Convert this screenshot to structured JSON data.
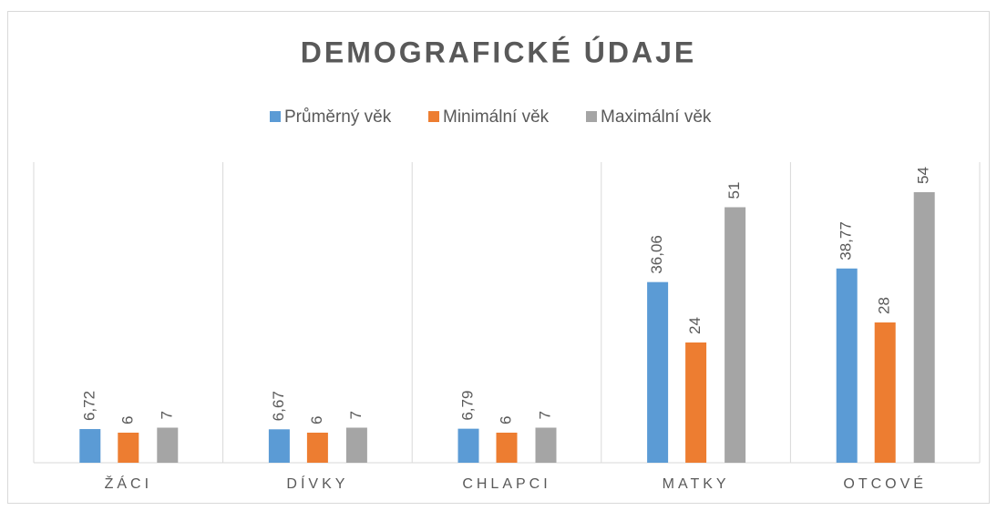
{
  "chart_data": {
    "type": "bar",
    "title": "DEMOGRAFICKÉ ÚDAJE",
    "categories": [
      "ŽÁCI",
      "DÍVKY",
      "CHLAPCI",
      "MATKY",
      "OTCOVÉ"
    ],
    "series": [
      {
        "name": "Průměrný věk",
        "color": "#5b9bd5",
        "values": [
          6.72,
          6.67,
          6.79,
          36.06,
          38.77
        ],
        "value_labels": [
          "6,72",
          "6,67",
          "6,79",
          "36,06",
          "38,77"
        ]
      },
      {
        "name": "Minimální věk",
        "color": "#ed7d31",
        "values": [
          6,
          6,
          6,
          24,
          28
        ],
        "value_labels": [
          "6",
          "6",
          "6",
          "24",
          "28"
        ]
      },
      {
        "name": "Maximální věk",
        "color": "#a5a5a5",
        "values": [
          7,
          7,
          7,
          51,
          54
        ],
        "value_labels": [
          "7",
          "7",
          "7",
          "51",
          "54"
        ]
      }
    ],
    "ylim": [
      0,
      60
    ],
    "legend": "top"
  }
}
